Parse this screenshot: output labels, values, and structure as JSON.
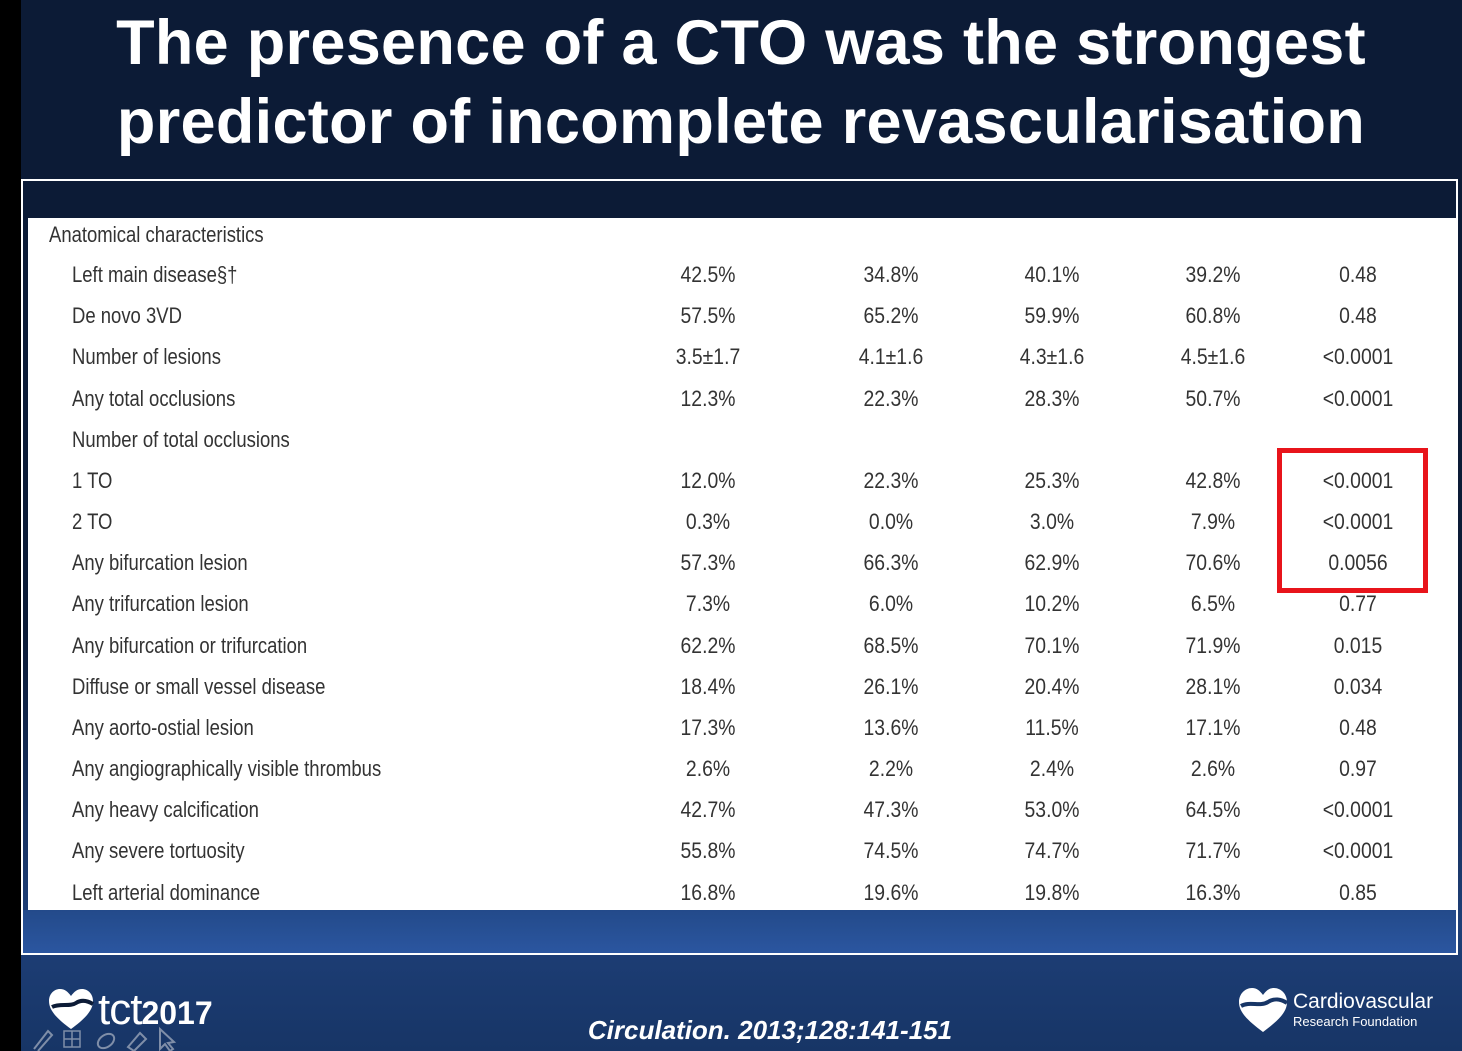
{
  "title": {
    "line1": "The presence of a CTO was the strongest",
    "line2": "predictor of incomplete revascularisation"
  },
  "table": {
    "section": "Anatomical characteristics",
    "rows": [
      {
        "label": "Left main disease§†",
        "v1": "42.5%",
        "v2": "34.8%",
        "v3": "40.1%",
        "v4": "39.2%",
        "p": "0.48"
      },
      {
        "label": "De novo 3VD",
        "v1": "57.5%",
        "v2": "65.2%",
        "v3": "59.9%",
        "v4": "60.8%",
        "p": "0.48"
      },
      {
        "label": "Number of lesions",
        "v1": "3.5±1.7",
        "v2": "4.1±1.6",
        "v3": "4.3±1.6",
        "v4": "4.5±1.6",
        "p": "<0.0001"
      },
      {
        "label": "Any total occlusions",
        "v1": "12.3%",
        "v2": "22.3%",
        "v3": "28.3%",
        "v4": "50.7%",
        "p": "<0.0001"
      },
      {
        "label": "Number of total occlusions",
        "v1": "",
        "v2": "",
        "v3": "",
        "v4": "",
        "p": ""
      },
      {
        "label": "1 TO",
        "v1": "12.0%",
        "v2": "22.3%",
        "v3": "25.3%",
        "v4": "42.8%",
        "p": "<0.0001"
      },
      {
        "label": "2 TO",
        "v1": "0.3%",
        "v2": "0.0%",
        "v3": "3.0%",
        "v4": "7.9%",
        "p": "<0.0001"
      },
      {
        "label": "Any bifurcation lesion",
        "v1": "57.3%",
        "v2": "66.3%",
        "v3": "62.9%",
        "v4": "70.6%",
        "p": "0.0056"
      },
      {
        "label": "Any trifurcation lesion",
        "v1": "7.3%",
        "v2": "6.0%",
        "v3": "10.2%",
        "v4": "6.5%",
        "p": "0.77"
      },
      {
        "label": "Any bifurcation or trifurcation",
        "v1": "62.2%",
        "v2": "68.5%",
        "v3": "70.1%",
        "v4": "71.9%",
        "p": "0.015"
      },
      {
        "label": "Diffuse or small vessel disease",
        "v1": "18.4%",
        "v2": "26.1%",
        "v3": "20.4%",
        "v4": "28.1%",
        "p": "0.034"
      },
      {
        "label": "Any aorto-ostial lesion",
        "v1": "17.3%",
        "v2": "13.6%",
        "v3": "11.5%",
        "v4": "17.1%",
        "p": "0.48"
      },
      {
        "label": "Any angiographically visible thrombus",
        "v1": "2.6%",
        "v2": "2.2%",
        "v3": "2.4%",
        "v4": "2.6%",
        "p": "0.97"
      },
      {
        "label": "Any heavy calcification",
        "v1": "42.7%",
        "v2": "47.3%",
        "v3": "53.0%",
        "v4": "64.5%",
        "p": "<0.0001"
      },
      {
        "label": "Any severe tortuosity",
        "v1": "55.8%",
        "v2": "74.5%",
        "v3": "74.7%",
        "v4": "71.7%",
        "p": "<0.0001"
      },
      {
        "label": "Left arterial dominance",
        "v1": "16.8%",
        "v2": "19.6%",
        "v3": "19.8%",
        "v4": "16.3%",
        "p": "0.85"
      }
    ]
  },
  "footer": {
    "tct_brand": "tct",
    "tct_year": "2017",
    "citation": "Circulation. 2013;128:141-151",
    "crf_name": "Cardiovascular",
    "crf_sub": "Research Foundation"
  },
  "colors": {
    "background": "#0c1b36",
    "highlight": "#e8141b",
    "table_bg": "#ffffff",
    "text": "#333333"
  },
  "icons": [
    "heart-logo-icon",
    "pen-icon",
    "grid-icon",
    "eraser-icon",
    "cursor-icon"
  ]
}
